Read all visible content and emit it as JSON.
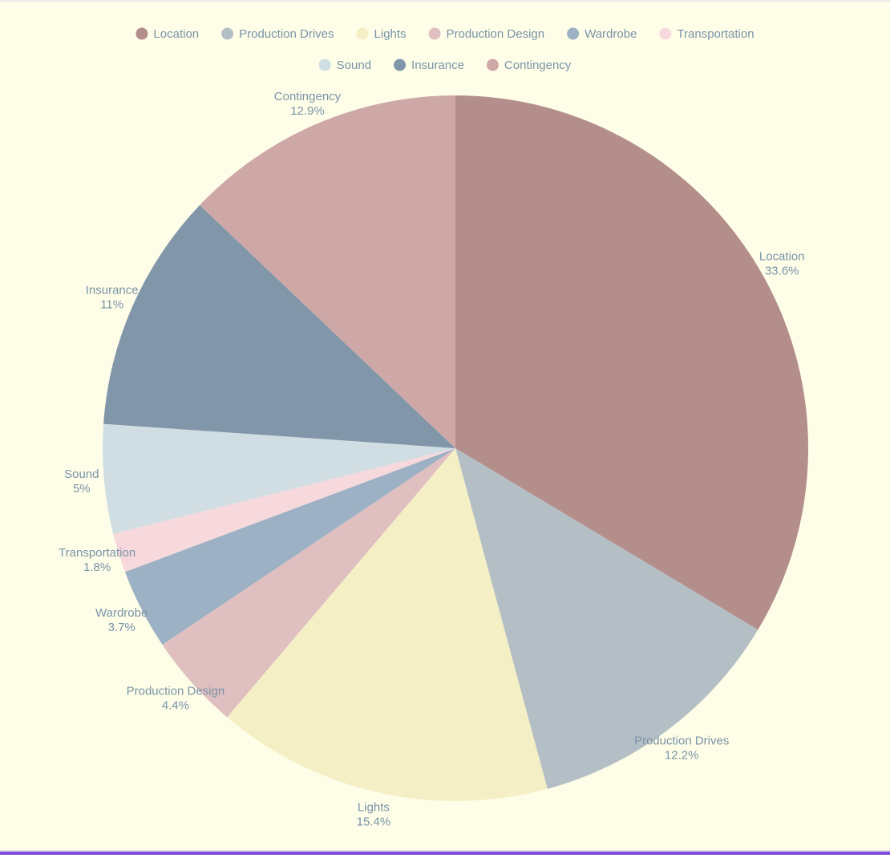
{
  "chart_data": {
    "type": "pie",
    "legend_position": "top",
    "text_color": "#7a93a8",
    "background": "#fefee8",
    "slices": [
      {
        "label": "Location",
        "value": 33.6,
        "display": "33.6%",
        "color": "#b38e8a"
      },
      {
        "label": "Production Drives",
        "value": 12.2,
        "display": "12.2%",
        "color": "#b4bfc5"
      },
      {
        "label": "Lights",
        "value": 15.4,
        "display": "15.4%",
        "color": "#f5efc6"
      },
      {
        "label": "Production Design",
        "value": 4.4,
        "display": "4.4%",
        "color": "#dfbfc0"
      },
      {
        "label": "Wardrobe",
        "value": 3.7,
        "display": "3.7%",
        "color": "#9db1c4"
      },
      {
        "label": "Transportation",
        "value": 1.8,
        "display": "1.8%",
        "color": "#f7d9dd"
      },
      {
        "label": "Sound",
        "value": 5,
        "display": "5%",
        "color": "#d0dde3"
      },
      {
        "label": "Insurance",
        "value": 11,
        "display": "11%",
        "color": "#8296aa"
      },
      {
        "label": "Contingency",
        "value": 12.9,
        "display": "12.9%",
        "color": "#cea8a7"
      }
    ]
  }
}
